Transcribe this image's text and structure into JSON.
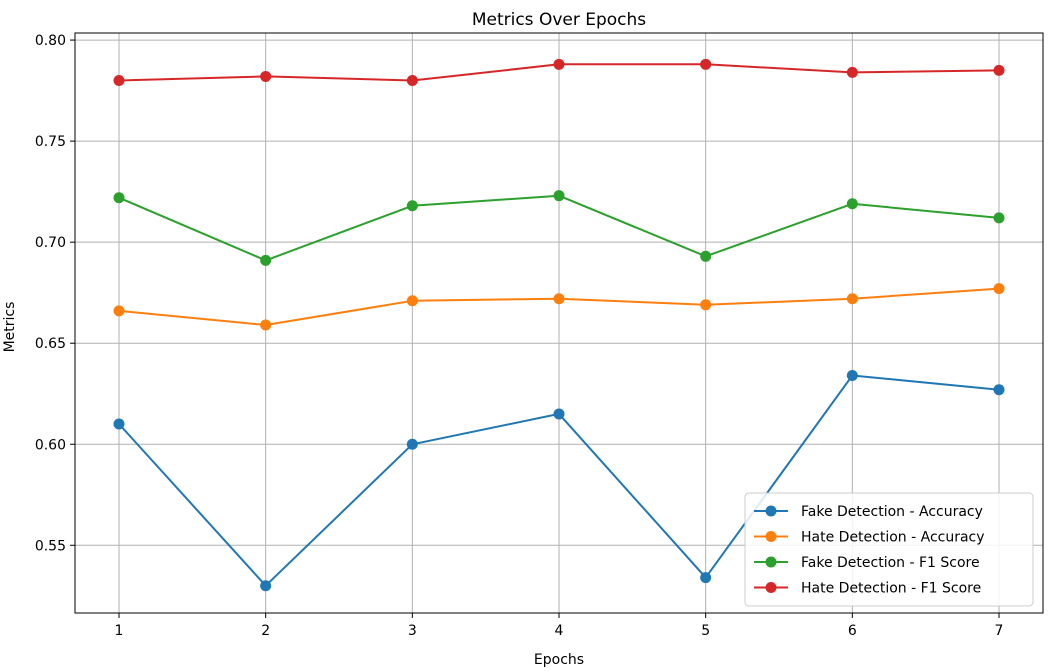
{
  "chart_data": {
    "type": "line",
    "title": "Metrics Over Epochs",
    "xlabel": "Epochs",
    "ylabel": "Metrics",
    "x": [
      1,
      2,
      3,
      4,
      5,
      6,
      7
    ],
    "xlim": [
      0.7,
      7.3
    ],
    "ylim": [
      0.5165,
      0.8035
    ],
    "xticks": [
      "1",
      "2",
      "3",
      "4",
      "5",
      "6",
      "7"
    ],
    "yticks": [
      "0.55",
      "0.60",
      "0.65",
      "0.70",
      "0.75",
      "0.80"
    ],
    "grid": true,
    "legend_position": "lower-right",
    "series": [
      {
        "name": "Fake Detection - Accuracy",
        "color": "#1f77b4",
        "values": [
          0.61,
          0.53,
          0.6,
          0.615,
          0.534,
          0.634,
          0.627
        ]
      },
      {
        "name": "Hate Detection - Accuracy",
        "color": "#ff7f0e",
        "values": [
          0.666,
          0.659,
          0.671,
          0.672,
          0.669,
          0.672,
          0.677
        ]
      },
      {
        "name": "Fake Detection - F1 Score",
        "color": "#2ca02c",
        "values": [
          0.722,
          0.691,
          0.718,
          0.723,
          0.693,
          0.719,
          0.712
        ]
      },
      {
        "name": "Hate Detection - F1 Score",
        "color": "#d62728",
        "values": [
          0.78,
          0.782,
          0.78,
          0.788,
          0.788,
          0.784,
          0.785
        ]
      }
    ]
  }
}
